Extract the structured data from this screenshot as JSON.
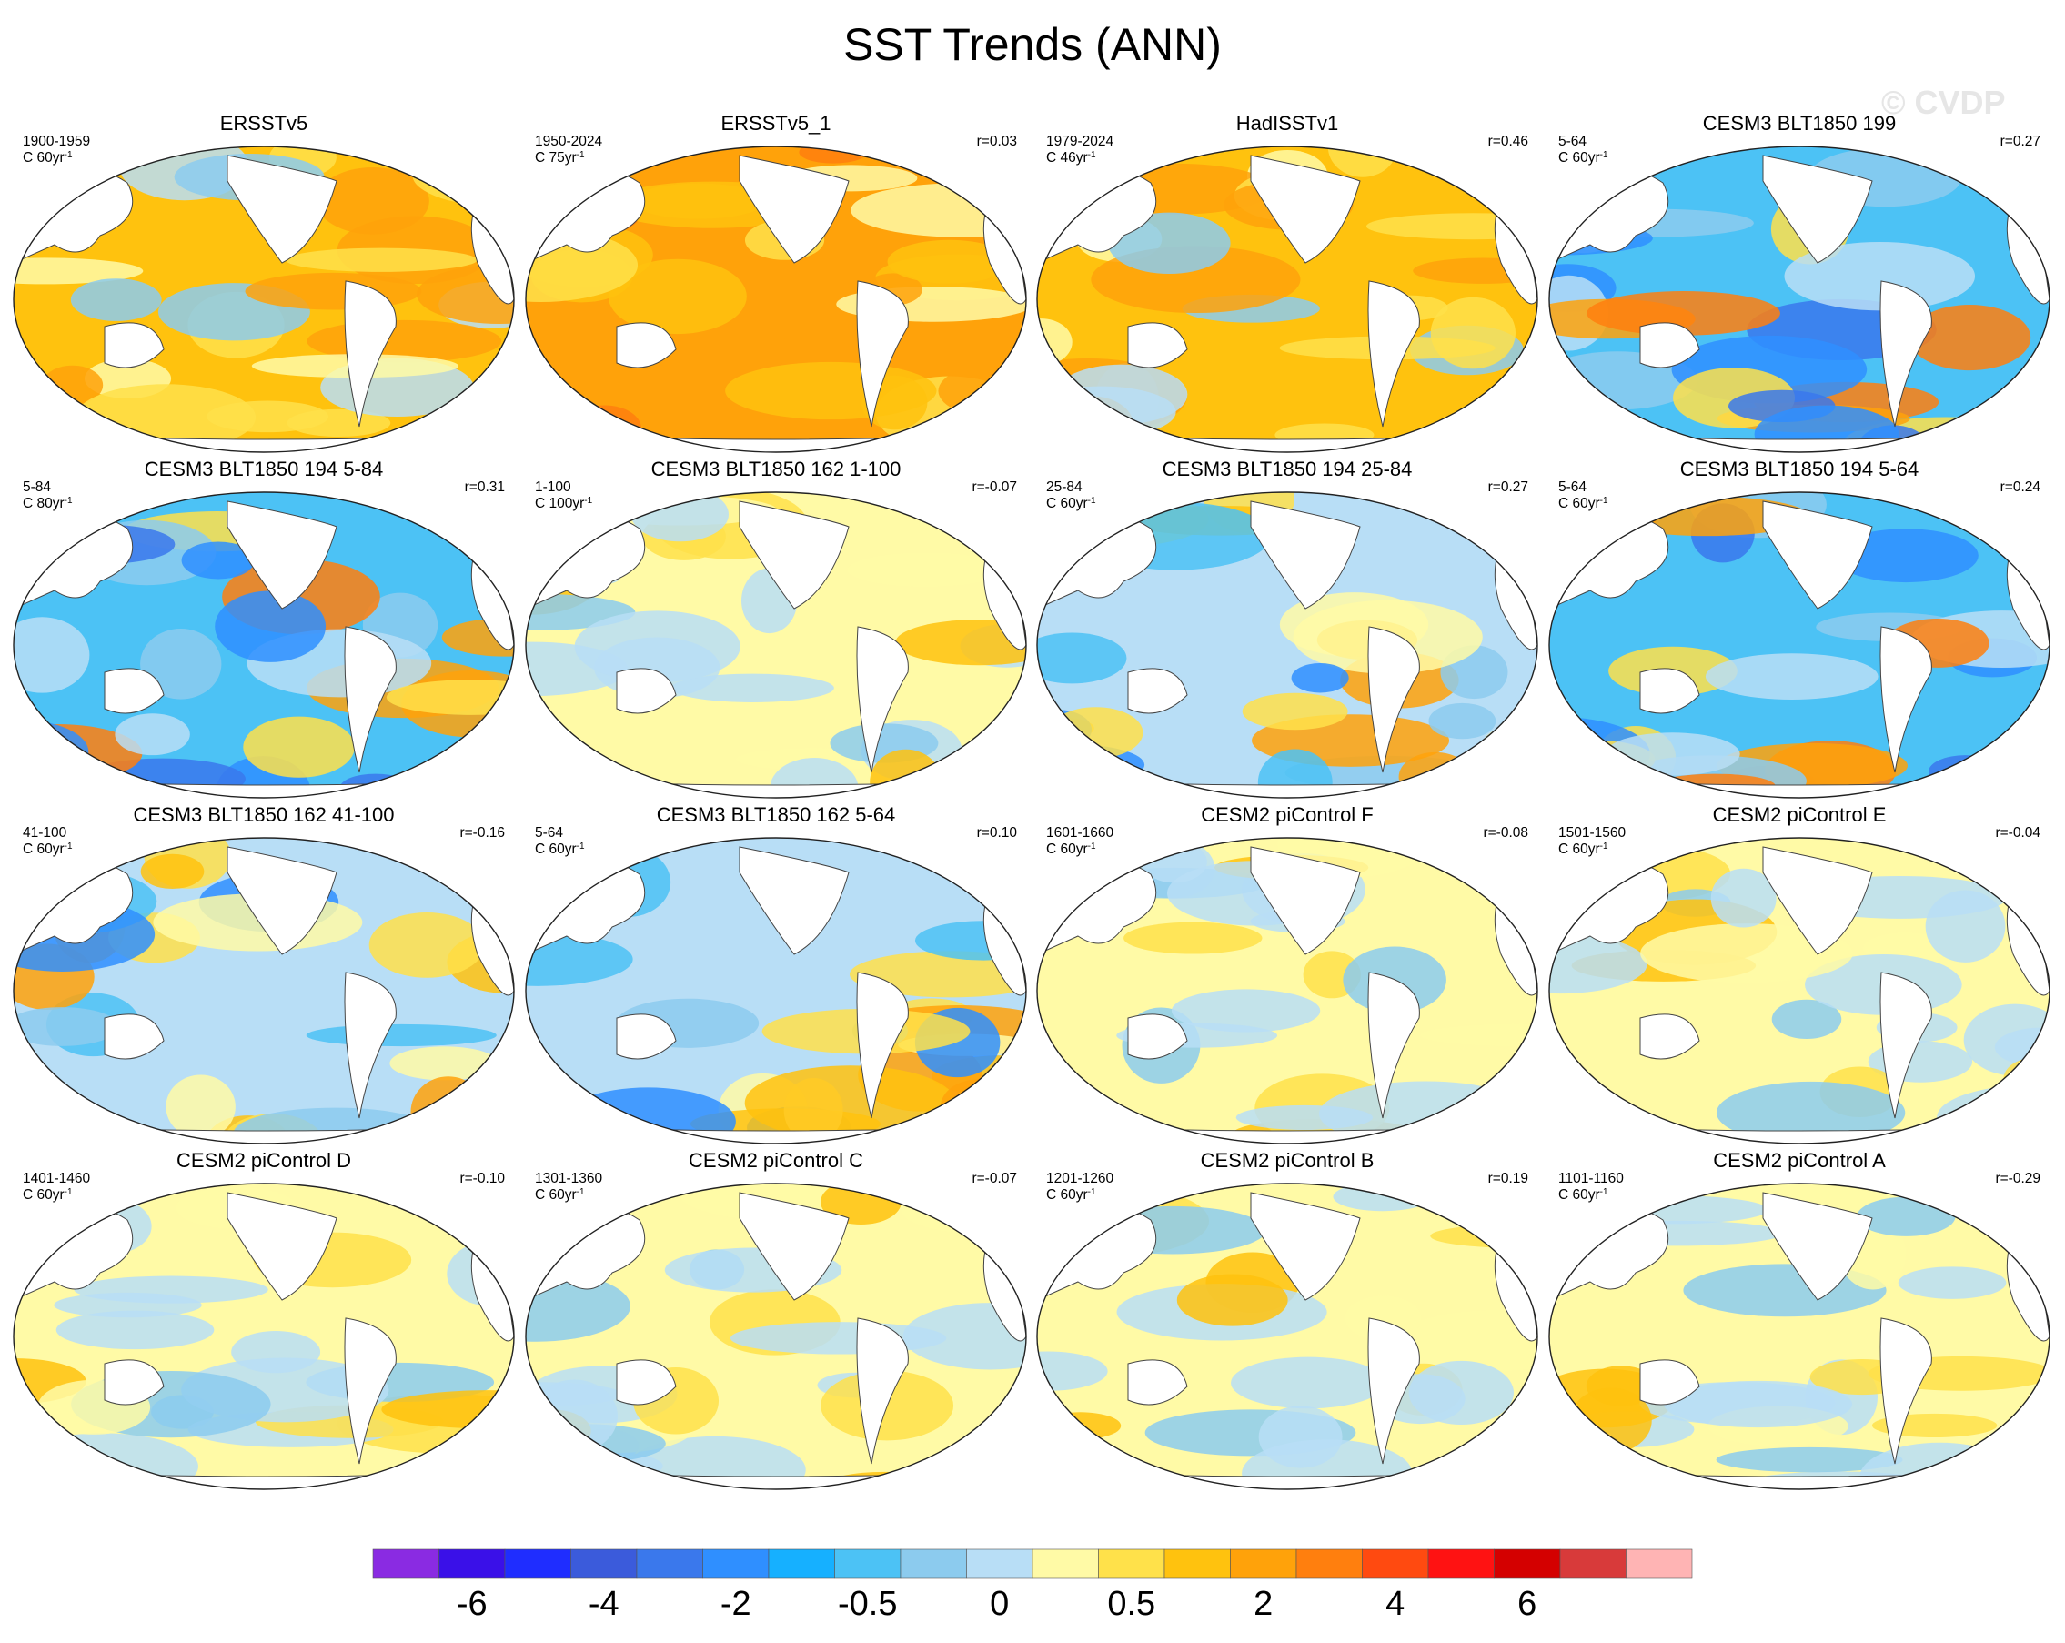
{
  "title": "SST Trends (ANN)",
  "watermark": "© CVDP",
  "chart_data": {
    "type": "heatmap",
    "title": "SST Trends (ANN)",
    "panels": [
      {
        "title": "ERSSTv5",
        "period": "1900-1959",
        "scale": "C 60yr",
        "r": "",
        "field": "warm"
      },
      {
        "title": "ERSSTv5_1",
        "period": "1950-2024",
        "scale": "C 75yr",
        "r": "r=0.03",
        "field": "warmer"
      },
      {
        "title": "HadISSTv1",
        "period": "1979-2024",
        "scale": "C 46yr",
        "r": "r=0.46",
        "field": "warm"
      },
      {
        "title": "CESM3 BLT1850 199",
        "period": "5-64",
        "scale": "C 60yr",
        "r": "r=0.27",
        "field": "cold"
      },
      {
        "title": "CESM3 BLT1850 194 5-84",
        "period": "5-84",
        "scale": "C 80yr",
        "r": "r=0.31",
        "field": "cold"
      },
      {
        "title": "CESM3 BLT1850 162 1-100",
        "period": "1-100",
        "scale": "C 100yr",
        "r": "r=-0.07",
        "field": "mild"
      },
      {
        "title": "CESM3 BLT1850 194 25-84",
        "period": "25-84",
        "scale": "C 60yr",
        "r": "r=0.27",
        "field": "mixed"
      },
      {
        "title": "CESM3 BLT1850 194 5-64",
        "period": "5-64",
        "scale": "C 60yr",
        "r": "r=0.24",
        "field": "cold"
      },
      {
        "title": "CESM3 BLT1850 162 41-100",
        "period": "41-100",
        "scale": "C 60yr",
        "r": "r=-0.16",
        "field": "mixed"
      },
      {
        "title": "CESM3 BLT1850 162 5-64",
        "period": "5-64",
        "scale": "C 60yr",
        "r": "r=0.10",
        "field": "mixed"
      },
      {
        "title": "CESM2 piControl F",
        "period": "1601-1660",
        "scale": "C 60yr",
        "r": "r=-0.08",
        "field": "mild"
      },
      {
        "title": "CESM2 piControl E",
        "period": "1501-1560",
        "scale": "C 60yr",
        "r": "r=-0.04",
        "field": "mild"
      },
      {
        "title": "CESM2 piControl D",
        "period": "1401-1460",
        "scale": "C 60yr",
        "r": "r=-0.10",
        "field": "mild"
      },
      {
        "title": "CESM2 piControl C",
        "period": "1301-1360",
        "scale": "C 60yr",
        "r": "r=-0.07",
        "field": "mild"
      },
      {
        "title": "CESM2 piControl B",
        "period": "1201-1260",
        "scale": "C 60yr",
        "r": "r=0.19",
        "field": "mild"
      },
      {
        "title": "CESM2 piControl A",
        "period": "1101-1160",
        "scale": "C 60yr",
        "r": "r=-0.29",
        "field": "mild"
      }
    ],
    "colorbar": {
      "colors": [
        "#8a2be2",
        "#3a10e8",
        "#1f2dff",
        "#3b5bdb",
        "#3a78ec",
        "#2f8fff",
        "#16b0ff",
        "#4cc2f5",
        "#8ccbee",
        "#b8def6",
        "#fffaa6",
        "#ffe14a",
        "#ffc20e",
        "#ffa20a",
        "#ff7f0e",
        "#ff4a10",
        "#ff1212",
        "#d40000",
        "#d83a3a",
        "#ffb4b4"
      ],
      "tick_labels": [
        "-6",
        "-4",
        "-2",
        "-0.5",
        "0",
        "0.5",
        "2",
        "4",
        "6"
      ],
      "tick_boundaries": [
        2,
        4,
        6,
        8,
        10,
        12,
        14,
        16,
        18
      ]
    }
  }
}
